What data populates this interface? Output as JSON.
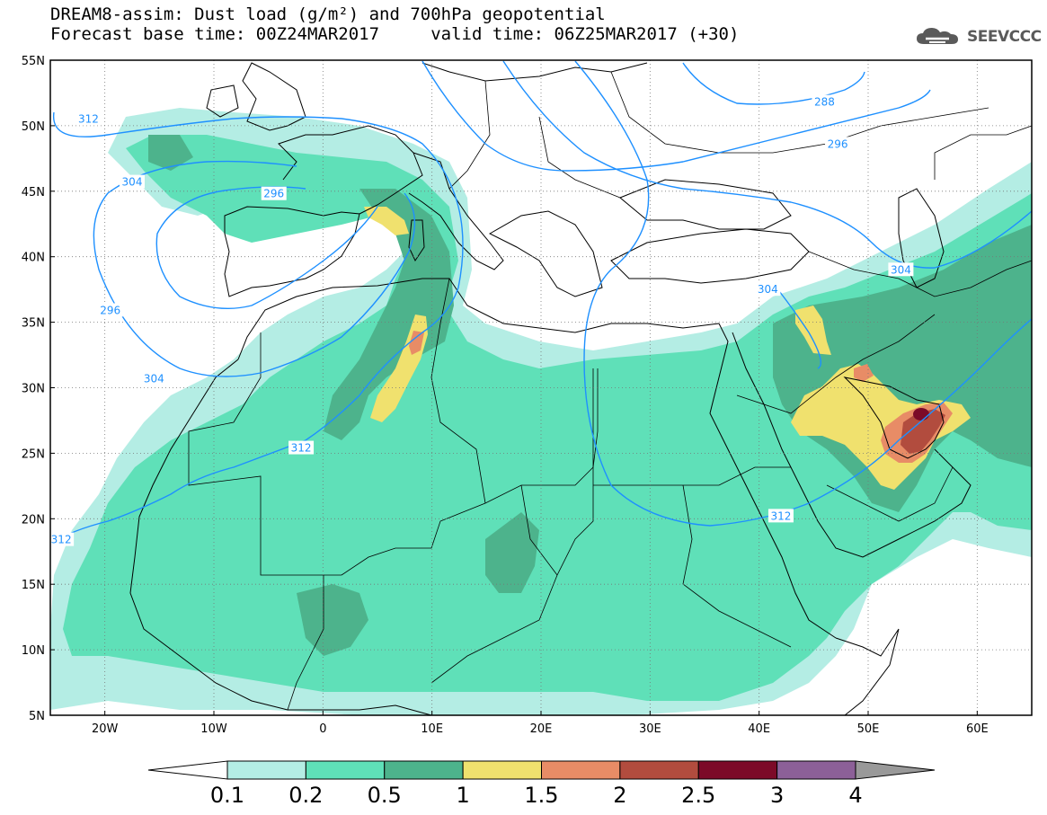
{
  "title": {
    "line1": "DREAM8-assim: Dust load (g/m²) and 700hPa geopotential",
    "line2": "Forecast base time: 00Z24MAR2017     valid time: 06Z25MAR2017 (+30)"
  },
  "logo": {
    "text": "SEEVCCC",
    "icon": "cloud-logo-icon"
  },
  "axes": {
    "lat_labels": [
      "55N",
      "50N",
      "45N",
      "40N",
      "35N",
      "30N",
      "25N",
      "20N",
      "15N",
      "10N",
      "5N"
    ],
    "lon_labels": [
      "20W",
      "10W",
      "0",
      "10E",
      "20E",
      "30E",
      "40E",
      "50E",
      "60E"
    ],
    "lat_range": [
      5,
      55
    ],
    "lon_range": [
      -25,
      65
    ],
    "grid": "dotted"
  },
  "contours": {
    "variable": "700hPa geopotential",
    "color": "#1e90ff",
    "labels": [
      {
        "value": "312",
        "lon": -21.5,
        "lat": 50.5
      },
      {
        "value": "304",
        "lon": -17.5,
        "lat": 45.7
      },
      {
        "value": "296",
        "lon": -4.5,
        "lat": 44.8
      },
      {
        "value": "296",
        "lon": -19.5,
        "lat": 35.9
      },
      {
        "value": "304",
        "lon": -15.5,
        "lat": 30.7
      },
      {
        "value": "312",
        "lon": -2.0,
        "lat": 25.4
      },
      {
        "value": "312",
        "lon": -24.0,
        "lat": 18.4
      },
      {
        "value": "288",
        "lon": 46.0,
        "lat": 51.8
      },
      {
        "value": "296",
        "lon": 47.2,
        "lat": 48.6
      },
      {
        "value": "304",
        "lon": 40.8,
        "lat": 37.5
      },
      {
        "value": "304",
        "lon": 53.0,
        "lat": 39.0
      },
      {
        "value": "312",
        "lon": 42.0,
        "lat": 20.2
      }
    ]
  },
  "colorbar": {
    "labels": [
      "0.1",
      "0.2",
      "0.5",
      "1",
      "1.5",
      "2",
      "2.5",
      "3",
      "4"
    ],
    "colors": [
      "#ffffff",
      "#b4ede4",
      "#5fe0b8",
      "#4db38c",
      "#f0e16e",
      "#e88c66",
      "#b24c3e",
      "#7c0a28",
      "#8c6098",
      "#999999"
    ]
  },
  "dust_colors": {
    "c01": "#b4ede4",
    "c02": "#5fe0b8",
    "c05": "#4db38c",
    "c1": "#f0e16e",
    "c15": "#e88c66",
    "c2": "#b24c3e",
    "c25": "#7c0a28"
  }
}
